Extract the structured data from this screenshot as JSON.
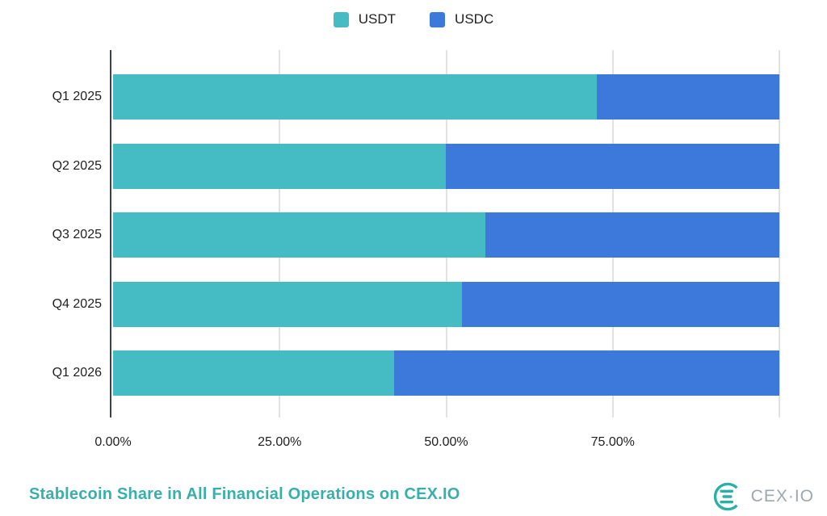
{
  "legend": {
    "items": [
      {
        "label": "USDT",
        "color": "#45BCC3"
      },
      {
        "label": "USDC",
        "color": "#3D78DB"
      }
    ]
  },
  "chart_data": {
    "type": "bar",
    "orientation": "horizontal",
    "stacked": true,
    "categories": [
      "Q1 2025",
      "Q2 2025",
      "Q3 2025",
      "Q4 2025",
      "Q1 2026"
    ],
    "series": [
      {
        "name": "USDT",
        "color": "#45BCC3",
        "values": [
          72.6,
          49.9,
          55.9,
          52.4,
          42.2
        ]
      },
      {
        "name": "USDC",
        "color": "#3D78DB",
        "values": [
          27.4,
          50.1,
          44.1,
          47.6,
          57.8
        ]
      }
    ],
    "xlim": [
      0,
      100
    ],
    "x_ticks": [
      {
        "value": 0,
        "label": "0.00%"
      },
      {
        "value": 25,
        "label": "25.00%"
      },
      {
        "value": 50,
        "label": "50.00%"
      },
      {
        "value": 75,
        "label": "75.00%"
      }
    ],
    "gridline_values": [
      25,
      50,
      75,
      100
    ],
    "grid": true,
    "legend_position": "top",
    "title": "Stablecoin Share in All Financial Operations on CEX.IO"
  },
  "footer": {
    "title": "Stablecoin Share in All Financial Operations on CEX.IO",
    "brand_text": "CEX·IO"
  },
  "colors": {
    "usdt": "#45BCC3",
    "usdc": "#3D78DB",
    "gridline": "#E2E2E2",
    "axis": "#3A4148",
    "tick_text": "#1F1F1F",
    "title_teal": "#38AFAC",
    "brand_gray": "#9EA7AE",
    "brand_teal": "#2BB0A9",
    "background": "#FFFFFF"
  }
}
